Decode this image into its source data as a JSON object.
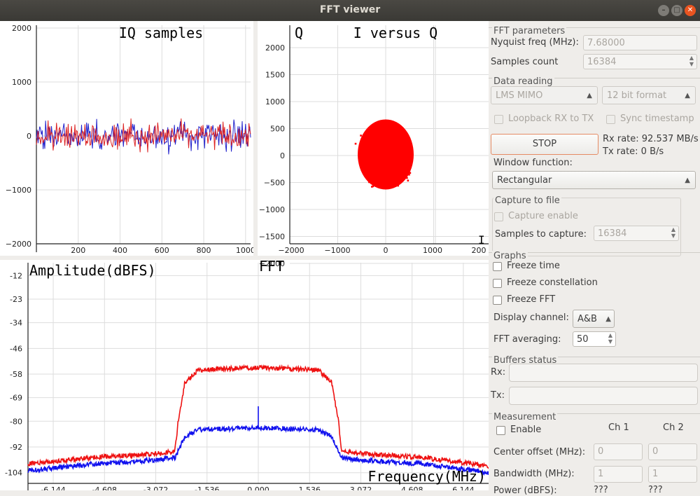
{
  "window": {
    "title": "FFT viewer"
  },
  "iq_plot": {
    "title": "IQ samples",
    "y_ticks": [
      "2000",
      "1000",
      "0",
      "−1000",
      "−2000"
    ],
    "x_ticks": [
      "200",
      "400",
      "600",
      "800",
      "1000"
    ]
  },
  "iq_scatter": {
    "title": "I versus Q",
    "axis_label": "Q",
    "y_ticks": [
      "2000",
      "1500",
      "1000",
      "500",
      "0",
      "−500",
      "−1000",
      "−1500",
      "−2000"
    ],
    "x_ticks": [
      "−2000",
      "−1000",
      "0",
      "1000",
      "200"
    ]
  },
  "fft_plot": {
    "title": "FFT",
    "ylabel": "Amplitude(dBFS)",
    "xlabel": "Frequency(MHz)",
    "y_ticks": [
      "-12",
      "-23",
      "-34",
      "-46",
      "-58",
      "-69",
      "-80",
      "-92",
      "-104"
    ],
    "x_ticks": [
      "-6.144",
      "-4.608",
      "-3.072",
      "-1.536",
      "0.000",
      "1.536",
      "3.072",
      "4.608",
      "6.144"
    ]
  },
  "chart_data": [
    {
      "type": "line",
      "title": "IQ samples",
      "xlim": [
        0,
        1024
      ],
      "ylim": [
        -2000,
        2000
      ],
      "series": [
        {
          "color": "#2222cc",
          "amplitude_range": [
            -600,
            600
          ]
        },
        {
          "color": "#dd2222",
          "amplitude_range": [
            -600,
            600
          ]
        }
      ]
    },
    {
      "type": "scatter",
      "title": "I versus Q",
      "xlim": [
        -2000,
        2000
      ],
      "ylim": [
        -2000,
        2000
      ],
      "series": [
        {
          "color": "#ff0000",
          "center": [
            0,
            0
          ],
          "extent_x": [
            -800,
            900
          ],
          "extent_y": [
            -900,
            1050
          ]
        }
      ]
    },
    {
      "type": "line",
      "title": "FFT",
      "xlabel": "Frequency(MHz)",
      "ylabel": "Amplitude(dBFS)",
      "xlim": [
        -6.9,
        6.9
      ],
      "ylim": [
        -109,
        -6
      ],
      "series": [
        {
          "color": "#ee1111",
          "x": [
            -6.9,
            -5.0,
            -3.0,
            -2.5,
            -2.4,
            -2.2,
            -1.8,
            -1.0,
            0,
            1.0,
            1.8,
            2.2,
            2.4,
            2.5,
            3.0,
            5.0,
            6.9
          ],
          "y": [
            -100,
            -97,
            -95,
            -94,
            -80,
            -62,
            -56,
            -55.5,
            -55,
            -55.5,
            -56,
            -62,
            -80,
            -94,
            -95,
            -97,
            -101
          ]
        },
        {
          "color": "#1111ee",
          "x": [
            -6.9,
            -5.0,
            -3.0,
            -2.5,
            -2.4,
            -2.2,
            -1.8,
            -1.0,
            0,
            1.0,
            1.8,
            2.2,
            2.4,
            2.5,
            3.0,
            5.0,
            6.9
          ],
          "y": [
            -103,
            -100,
            -98,
            -97,
            -94,
            -87,
            -84,
            -83.5,
            -83,
            -83.5,
            -84,
            -87,
            -94,
            -97,
            -98,
            -100,
            -104
          ],
          "spike": {
            "x": 0,
            "y": -73
          }
        }
      ]
    }
  ],
  "fft_params": {
    "title": "FFT parameters",
    "nyquist_label": "Nyquist freq (MHz):",
    "nyquist_value": "7.68000",
    "samples_label": "Samples count",
    "samples_value": "16384"
  },
  "data_reading": {
    "title": "Data reading",
    "source": "LMS MIMO",
    "format": "12 bit format",
    "loopback": "Loopback RX to TX",
    "sync": "Sync timestamp",
    "stop": "STOP",
    "rx_rate": "Rx rate:  92.537 MB/s",
    "tx_rate": "Tx rate:  0 B/s",
    "window_label": "Window function:",
    "window_value": "Rectangular"
  },
  "capture": {
    "title": "Capture to file",
    "enable": "Capture enable",
    "samples_label": "Samples to capture:",
    "samples_value": "16384"
  },
  "graphs": {
    "title": "Graphs",
    "freeze_time": "Freeze time",
    "freeze_constellation": "Freeze constellation",
    "freeze_fft": "Freeze FFT",
    "display_channel_label": "Display channel:",
    "display_channel_value": "A&B",
    "fft_avg_label": "FFT averaging:",
    "fft_avg_value": "50"
  },
  "buffers": {
    "title": "Buffers status",
    "rx": "Rx:",
    "tx": "Tx:"
  },
  "measurement": {
    "title": "Measurement",
    "enable": "Enable",
    "ch1": "Ch 1",
    "ch2": "Ch 2",
    "center_label": "Center offset (MHz):",
    "center_ch1": "0",
    "center_ch2": "0",
    "bw_label": "Bandwidth (MHz):",
    "bw_ch1": "1",
    "bw_ch2": "1",
    "power_label": "Power (dBFS):",
    "power_ch1": "???",
    "power_ch2": "???"
  }
}
